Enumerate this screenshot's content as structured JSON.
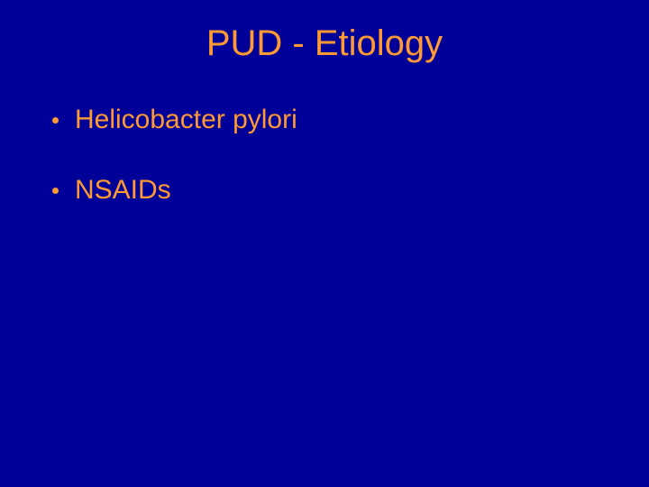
{
  "slide": {
    "title": "PUD - Etiology",
    "bullets": [
      {
        "text": "Helicobacter pylori"
      },
      {
        "text": "NSAIDs"
      }
    ],
    "colors": {
      "background": "#000099",
      "text": "#ff9933"
    },
    "typography": {
      "title_fontsize": 40,
      "bullet_fontsize": 30,
      "font_family": "Arial"
    }
  }
}
